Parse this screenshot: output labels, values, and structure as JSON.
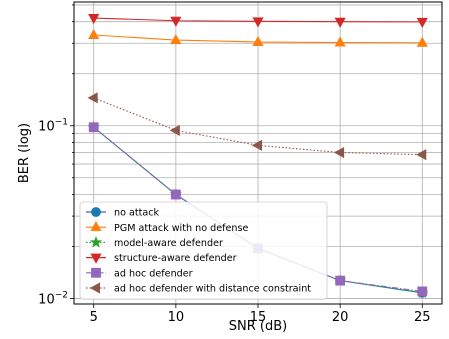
{
  "chart_data": {
    "type": "line",
    "xlabel": "SNR (dB)",
    "ylabel": "BER (log)",
    "yscale": "log",
    "xlim": [
      3.8,
      26.2
    ],
    "ylim": [
      0.0093,
      0.52
    ],
    "grid": true,
    "legend_position": "lower-left",
    "x": [
      5,
      10,
      15,
      20,
      25
    ],
    "x_ticks": [
      {
        "value": 5,
        "label": "5"
      },
      {
        "value": 10,
        "label": "10"
      },
      {
        "value": 15,
        "label": "15"
      },
      {
        "value": 20,
        "label": "20"
      },
      {
        "value": 25,
        "label": "25"
      }
    ],
    "y_ticks": [
      {
        "value": 0.01,
        "base": "10",
        "exp": "−2"
      },
      {
        "value": 0.1,
        "base": "10",
        "exp": "−1"
      }
    ],
    "series": [
      {
        "name": "no attack",
        "color": "#1f77b4",
        "marker": "circle",
        "linestyle": "solid",
        "values": [
          0.098,
          0.04,
          0.0195,
          0.0127,
          0.0108
        ]
      },
      {
        "name": "PGM attack with no defense",
        "color": "#ff7f0e",
        "marker": "triangle-up",
        "linestyle": "solid",
        "values": [
          0.335,
          0.313,
          0.305,
          0.303,
          0.302
        ]
      },
      {
        "name": "model-aware defender",
        "color": "#2ca02c",
        "marker": "star",
        "linestyle": "dotted",
        "values": [
          0.098,
          0.04,
          0.0195,
          0.0127,
          0.0108
        ]
      },
      {
        "name": "structure-aware defender",
        "color": "#d62728",
        "marker": "triangle-down",
        "linestyle": "solid",
        "values": [
          0.42,
          0.405,
          0.402,
          0.4,
          0.399
        ]
      },
      {
        "name": "ad hoc defender",
        "color": "#9467bd",
        "marker": "square",
        "linestyle": "dashdot",
        "values": [
          0.098,
          0.04,
          0.0195,
          0.0127,
          0.011
        ]
      },
      {
        "name": "ad hoc defender with distance constraint",
        "color": "#8c564b",
        "marker": "triangle-left",
        "linestyle": "dotted",
        "values": [
          0.145,
          0.094,
          0.077,
          0.07,
          0.068
        ]
      }
    ]
  }
}
